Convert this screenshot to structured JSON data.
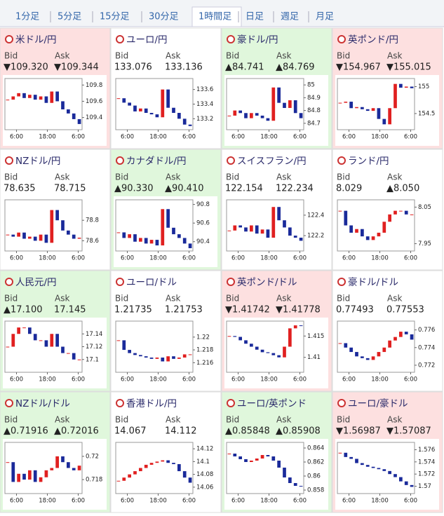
{
  "tabs": [
    "1分足",
    "5分足",
    "15分足",
    "30分足",
    "1時間足",
    "日足",
    "週足",
    "月足"
  ],
  "selected_tab": 4,
  "bid_label": "Bid",
  "ask_label": "Ask",
  "time_labels": [
    "6:00",
    "18:00",
    "6:00"
  ],
  "up_color": "#2e8b2e",
  "down_color": "#e0506a",
  "candle_up_color": "#e02020",
  "candle_down_color": "#1a2a9a",
  "panels": [
    {
      "name": "米ドル/円",
      "bid": "▼109.320",
      "ask": "▼109.344",
      "background": "#fde0e0",
      "ylim": [
        109.25,
        109.88
      ],
      "yticks": [
        109.8,
        109.6,
        109.4
      ],
      "values": [
        109.62,
        109.66,
        109.7,
        109.64,
        109.68,
        109.62,
        109.66,
        109.58,
        109.72,
        109.6,
        109.5,
        109.45,
        109.38,
        109.32
      ]
    },
    {
      "name": "ユーロ/円",
      "bid": "133.076",
      "ask": "133.136",
      "background": "#ffffff",
      "ylim": [
        133.05,
        133.75
      ],
      "yticks": [
        133.6,
        133.4,
        133.2
      ],
      "values": [
        133.48,
        133.42,
        133.38,
        133.3,
        133.34,
        133.28,
        133.26,
        133.22,
        133.6,
        133.35,
        133.28,
        133.2,
        133.12,
        133.1
      ]
    },
    {
      "name": "豪ドル/円",
      "bid": "▲84.741",
      "ask": "▲84.769",
      "background": "#e0f7dc",
      "ylim": [
        84.65,
        85.05
      ],
      "yticks": [
        85,
        84.9,
        84.8,
        84.7
      ],
      "values": [
        84.76,
        84.8,
        84.78,
        84.74,
        84.78,
        84.76,
        84.74,
        84.72,
        84.98,
        84.86,
        84.82,
        84.88,
        84.78,
        84.74
      ]
    },
    {
      "name": "英ポンド/円",
      "bid": "▼154.967",
      "ask": "▼155.015",
      "background": "#fde0e0",
      "ylim": [
        154.2,
        155.15
      ],
      "yticks": [
        155,
        154.5
      ],
      "values": [
        154.7,
        154.72,
        154.6,
        154.62,
        154.58,
        154.55,
        154.6,
        154.4,
        154.3,
        154.6,
        155.05,
        154.98,
        155.0,
        154.97
      ]
    },
    {
      "name": "NZドル/円",
      "bid": "78.635",
      "ask": "78.715",
      "background": "#ffffff",
      "ylim": [
        78.5,
        79.0
      ],
      "yticks": [
        78.8,
        78.6
      ],
      "values": [
        78.66,
        78.64,
        78.68,
        78.62,
        78.64,
        78.6,
        78.66,
        78.58,
        78.9,
        78.8,
        78.7,
        78.66,
        78.62,
        78.63
      ]
    },
    {
      "name": "カナダドル/円",
      "bid": "▲90.330",
      "ask": "▲90.410",
      "background": "#e0f7dc",
      "ylim": [
        90.3,
        90.85
      ],
      "yticks": [
        90.8,
        90.6,
        90.4
      ],
      "values": [
        90.5,
        90.44,
        90.48,
        90.4,
        90.44,
        90.38,
        90.42,
        90.36,
        90.75,
        90.55,
        90.48,
        90.44,
        90.38,
        90.33
      ]
    },
    {
      "name": "スイスフラン/円",
      "bid": "122.154",
      "ask": "122.234",
      "background": "#ffffff",
      "ylim": [
        122.05,
        122.55
      ],
      "yticks": [
        122.4,
        122.2
      ],
      "values": [
        122.25,
        122.3,
        122.28,
        122.24,
        122.3,
        122.22,
        122.26,
        122.18,
        122.48,
        122.35,
        122.28,
        122.2,
        122.18,
        122.15
      ]
    },
    {
      "name": "ランド/円",
      "bid": "8.029",
      "ask": "▲8.050",
      "background": "#ffffff",
      "ylim": [
        7.93,
        8.07
      ],
      "yticks": [
        8.05,
        7.95
      ],
      "values": [
        8.04,
        8.0,
        7.98,
        7.99,
        7.97,
        7.96,
        7.97,
        7.98,
        8.01,
        8.03,
        8.04,
        8.04,
        8.03,
        8.03
      ]
    },
    {
      "name": "人民元/円",
      "bid": "▲17.100",
      "ask": "17.145",
      "background": "#e0f7dc",
      "ylim": [
        17.08,
        17.16
      ],
      "yticks": [
        17.14,
        17.12,
        17.1
      ],
      "values": [
        17.12,
        17.14,
        17.15,
        17.15,
        17.14,
        17.13,
        17.13,
        17.12,
        17.14,
        17.12,
        17.11,
        17.11,
        17.1,
        17.1
      ]
    },
    {
      "name": "ユーロ/ドル",
      "bid": "1.21735",
      "ask": "1.21753",
      "background": "#ffffff",
      "ylim": [
        1.2145,
        1.2225
      ],
      "yticks": [
        1.22,
        1.218,
        1.216
      ],
      "values": [
        1.2195,
        1.218,
        1.2175,
        1.2172,
        1.217,
        1.2168,
        1.2166,
        1.2168,
        1.2162,
        1.217,
        1.2166,
        1.2168,
        1.2173,
        1.2173
      ]
    },
    {
      "name": "英ポンド/ドル",
      "bid": "▼1.41742",
      "ask": "▼1.41778",
      "background": "#fde0e0",
      "ylim": [
        1.4065,
        1.4185
      ],
      "yticks": [
        1.415,
        1.41
      ],
      "values": [
        1.415,
        1.4148,
        1.414,
        1.4132,
        1.4125,
        1.4118,
        1.4112,
        1.411,
        1.4105,
        1.41,
        1.4125,
        1.4168,
        1.4175,
        1.4174
      ]
    },
    {
      "name": "豪ドル/ドル",
      "bid": "0.77493",
      "ask": "0.77553",
      "background": "#ffffff",
      "ylim": [
        0.7712,
        0.777
      ],
      "yticks": [
        0.776,
        0.774,
        0.772
      ],
      "values": [
        0.7745,
        0.774,
        0.7735,
        0.773,
        0.7728,
        0.7726,
        0.773,
        0.7735,
        0.774,
        0.7748,
        0.7752,
        0.7758,
        0.7755,
        0.7749
      ]
    },
    {
      "name": "NZドル/ドル",
      "bid": "▲0.71916",
      "ask": "▲0.72016",
      "background": "#e0f7dc",
      "ylim": [
        0.7168,
        0.7212
      ],
      "yticks": [
        0.72,
        0.718
      ],
      "values": [
        0.7195,
        0.7178,
        0.7185,
        0.718,
        0.7188,
        0.7178,
        0.7182,
        0.7188,
        0.719,
        0.72,
        0.7195,
        0.719,
        0.7188,
        0.7192
      ]
    },
    {
      "name": "香港ドル/円",
      "bid": "14.067",
      "ask": "14.112",
      "background": "#ffffff",
      "ylim": [
        14.05,
        14.13
      ],
      "yticks": [
        14.12,
        14.1,
        14.08,
        14.06
      ],
      "values": [
        14.07,
        14.075,
        14.08,
        14.085,
        14.09,
        14.095,
        14.098,
        14.1,
        14.102,
        14.098,
        14.096,
        14.085,
        14.075,
        14.067
      ]
    },
    {
      "name": "ユーロ/英ポンド",
      "bid": "▲0.85848",
      "ask": "▲0.85908",
      "background": "#e0f7dc",
      "ylim": [
        0.8575,
        0.8648
      ],
      "yticks": [
        0.864,
        0.862,
        0.86,
        0.858
      ],
      "values": [
        0.8632,
        0.8628,
        0.8624,
        0.862,
        0.8622,
        0.8625,
        0.863,
        0.8628,
        0.8622,
        0.8612,
        0.8598,
        0.859,
        0.8586,
        0.8585
      ]
    },
    {
      "name": "ユーロ/豪ドル",
      "bid": "▼1.56987",
      "ask": "▼1.57087",
      "background": "#fde0e0",
      "ylim": [
        1.5688,
        1.5772
      ],
      "yticks": [
        1.576,
        1.574,
        1.572,
        1.57
      ],
      "values": [
        1.5755,
        1.5748,
        1.5745,
        1.5738,
        1.5735,
        1.5732,
        1.573,
        1.5728,
        1.5725,
        1.572,
        1.5715,
        1.5708,
        1.5702,
        1.5699
      ]
    }
  ]
}
